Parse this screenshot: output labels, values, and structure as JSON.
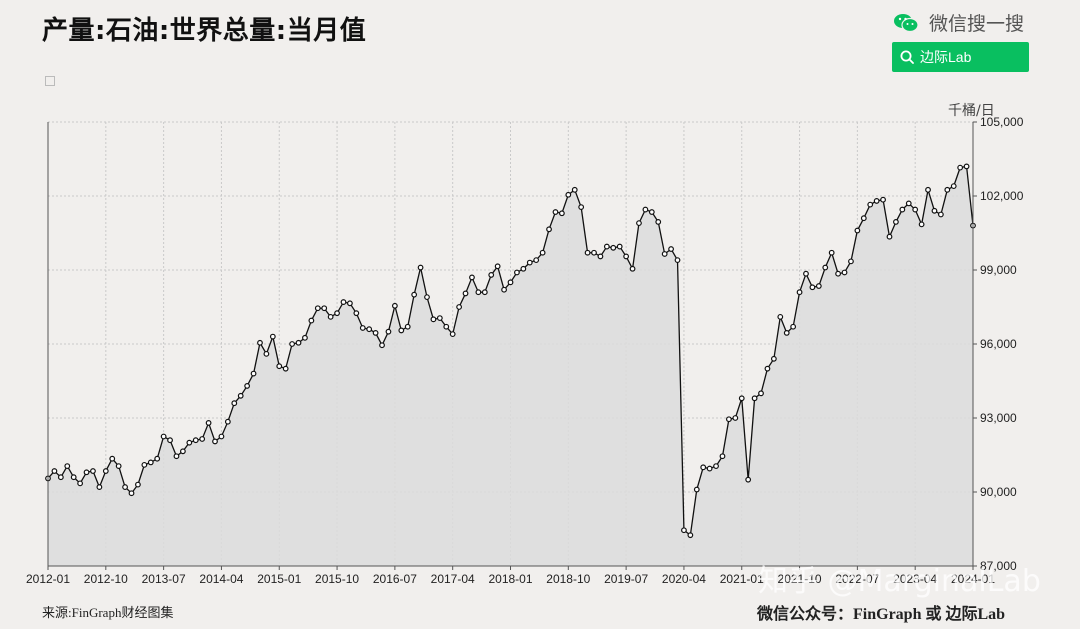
{
  "header": {
    "title": "产量:石油:世界总量:当月值",
    "wechat_label": "微信搜一搜",
    "search_button_label": "边际Lab"
  },
  "footer": {
    "source": "来源:FinGraph财经图集",
    "credit": "微信公众号：FinGraph 或 边际Lab",
    "watermark": "知乎 @MarginalLab"
  },
  "colors": {
    "accent": "#09bf60",
    "line": "#111111",
    "fill": "#dcdcdc"
  },
  "chart_data": {
    "type": "area",
    "title": "产量:石油:世界总量:当月值",
    "ylabel": "千桶/日",
    "ylim": [
      87000,
      105000
    ],
    "yticks": [
      "87,000",
      "90,000",
      "93,000",
      "96,000",
      "99,000",
      "102,000",
      "105,000"
    ],
    "xticks": [
      "2012-01",
      "2012-10",
      "2013-07",
      "2014-04",
      "2015-01",
      "2015-10",
      "2016-07",
      "2017-04",
      "2018-01",
      "2018-10",
      "2019-07",
      "2020-04",
      "2021-01",
      "2021-10",
      "2022-07",
      "2023-04",
      "2024-01"
    ],
    "grid": true,
    "start": "2012-01",
    "values": [
      90550,
      90850,
      90600,
      91050,
      90600,
      90350,
      90800,
      90850,
      90200,
      90850,
      91350,
      91050,
      90200,
      89950,
      90300,
      91100,
      91200,
      91350,
      92250,
      92100,
      91450,
      91650,
      92000,
      92100,
      92150,
      92800,
      92050,
      92250,
      92850,
      93600,
      93900,
      94300,
      94800,
      96050,
      95600,
      96300,
      95100,
      95000,
      96000,
      96050,
      96250,
      96950,
      97450,
      97450,
      97100,
      97250,
      97700,
      97650,
      97250,
      96650,
      96600,
      96450,
      95950,
      96500,
      97550,
      96550,
      96700,
      98000,
      99100,
      97900,
      97000,
      97050,
      96700,
      96400,
      97500,
      98050,
      98700,
      98100,
      98100,
      98800,
      99150,
      98200,
      98500,
      98900,
      99050,
      99300,
      99400,
      99700,
      100650,
      101350,
      101300,
      102050,
      102250,
      101550,
      99700,
      99700,
      99550,
      99950,
      99900,
      99950,
      99550,
      99050,
      100900,
      101450,
      101350,
      100950,
      99650,
      99850,
      99400,
      88450,
      88250,
      90100,
      91000,
      90950,
      91050,
      91450,
      92950,
      93000,
      93800,
      90500,
      93800,
      94000,
      95000,
      95400,
      97100,
      96450,
      96700,
      98100,
      98850,
      98300,
      98350,
      99100,
      99700,
      98850,
      98900,
      99350,
      100600,
      101100,
      101650,
      101800,
      101850,
      100350,
      100950,
      101450,
      101700,
      101450,
      100850,
      102250,
      101400,
      101250,
      102250,
      102400,
      103150,
      103200,
      100800
    ]
  }
}
